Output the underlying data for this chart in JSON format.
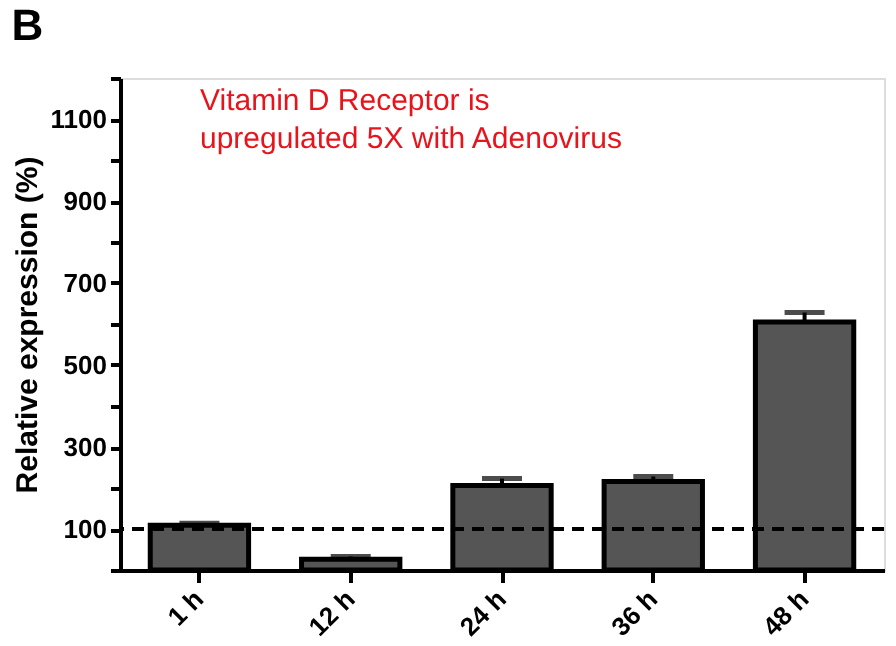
{
  "chart_data": {
    "type": "bar",
    "title": "B",
    "categories": [
      "1 h",
      "12 h",
      "24 h",
      "36 h",
      "48 h"
    ],
    "values": [
      109,
      26,
      206,
      216,
      605
    ],
    "errors": [
      [
        109,
        114
      ],
      [
        26,
        33
      ],
      [
        206,
        223
      ],
      [
        216,
        228
      ],
      [
        605,
        628
      ]
    ],
    "color": "#555555",
    "ylabel": "Relative expression (%)",
    "ylim": [
      0,
      1200
    ],
    "yticks": [
      {
        "value": 0,
        "label": null
      },
      100,
      {
        "value": 200,
        "label": null
      },
      300,
      {
        "value": 400,
        "label": null
      },
      500,
      {
        "value": 600,
        "label": null
      },
      700,
      {
        "value": 800,
        "label": null
      },
      900,
      {
        "value": 1000,
        "label": null
      },
      1100,
      {
        "value": 1200,
        "label": null
      }
    ],
    "ref_lines": [
      {
        "axis": "y",
        "value": 100,
        "color": "#000000",
        "line_style": "dashed"
      }
    ],
    "annotations": [
      "Vitamin D Receptor is\nupregulated 5X with Adenovirus"
    ],
    "grid": false
  }
}
